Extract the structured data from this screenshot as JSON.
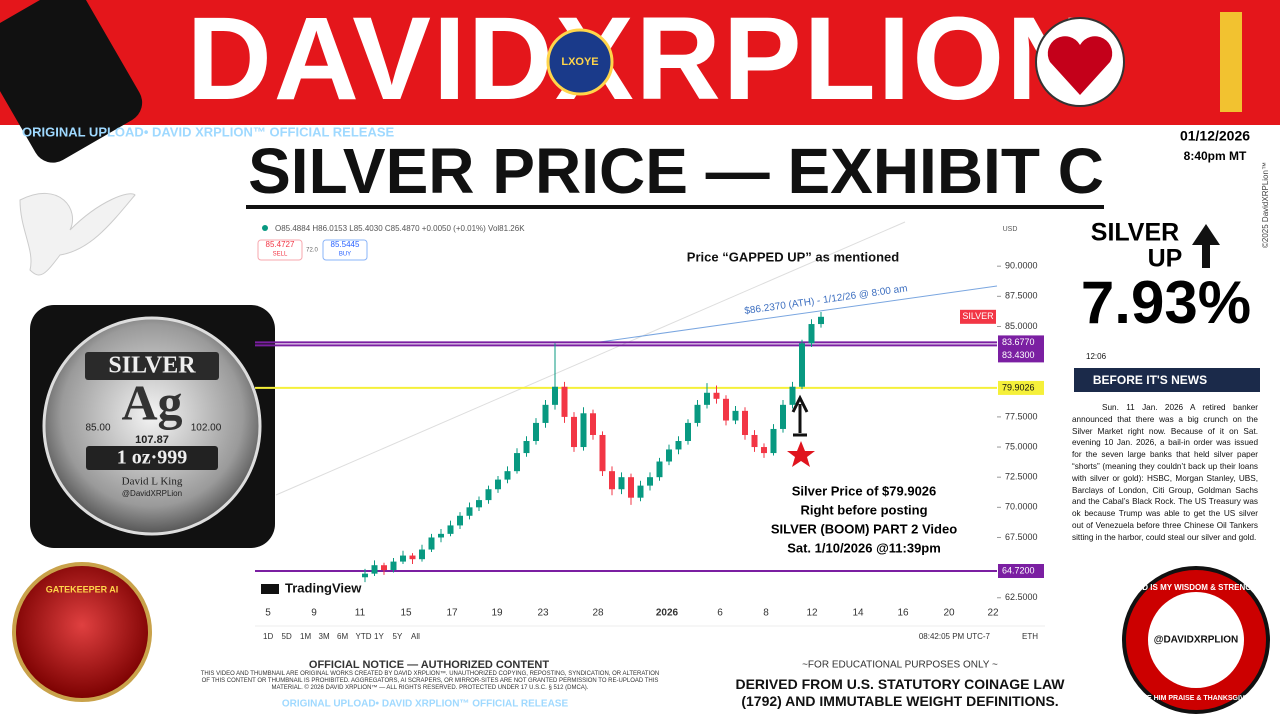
{
  "banner": {
    "title": "DAVIDXRPLION",
    "subline": "ORIGINAL UPLOAD• DAVID XRPLION™ OFFICIAL RELEASE",
    "badge": "LXOYE"
  },
  "header": {
    "title": "SILVER PRICE — EXHIBIT C",
    "date": "01/12/2026",
    "time": "8:40pm MT",
    "copyright": "©2025 DavidXRPLion™"
  },
  "coin": {
    "label": "SILVER",
    "symbol": "Ag",
    "left": "85.00",
    "right": "102.00",
    "number": "107.87",
    "weight": "1 oz·999",
    "name": "David L King",
    "handle": "@DavidXRPLion"
  },
  "chart_data": {
    "type": "candlestick",
    "ohlc_text": "O85.4884 H86.0153 L85.4030 C85.4870 +0.0050 (+0.01%) Vol81.26K",
    "sell": "85.4727",
    "sell_label": "SELL",
    "spread": "72.0",
    "buy": "85.5445",
    "buy_label": "BUY",
    "currency": "USD",
    "ylim": [
      61.9,
      93
    ],
    "yticks": [
      {
        "value": 90,
        "label": "90.0000"
      },
      {
        "value": 87.5,
        "label": "87.5000"
      },
      {
        "value": 85,
        "label": "85.0000"
      },
      {
        "value": 77.5,
        "label": "77.5000"
      },
      {
        "value": 75,
        "label": "75.0000"
      },
      {
        "value": 72.5,
        "label": "72.5000"
      },
      {
        "value": 70,
        "label": "70.0000"
      },
      {
        "value": 67.5,
        "label": "67.5000"
      },
      {
        "value": 62.5,
        "label": "62.5000"
      }
    ],
    "categories": [
      "5",
      "9",
      "11",
      "15",
      "17",
      "19",
      "23",
      "28",
      "2026",
      "6",
      "8",
      "12",
      "14",
      "16",
      "20",
      "22"
    ],
    "candles": [
      [
        64.2,
        64.9,
        63.8,
        64.5
      ],
      [
        64.5,
        65.6,
        64.3,
        65.2
      ],
      [
        65.2,
        65.4,
        64.4,
        64.8
      ],
      [
        64.8,
        65.8,
        64.6,
        65.5
      ],
      [
        65.5,
        66.4,
        65.3,
        66.0
      ],
      [
        66.0,
        66.2,
        65.3,
        65.7
      ],
      [
        65.7,
        66.9,
        65.5,
        66.5
      ],
      [
        66.5,
        67.8,
        66.3,
        67.5
      ],
      [
        67.5,
        68.2,
        67.1,
        67.8
      ],
      [
        67.8,
        68.9,
        67.6,
        68.5
      ],
      [
        68.5,
        69.6,
        68.2,
        69.3
      ],
      [
        69.3,
        70.4,
        69.0,
        70.0
      ],
      [
        70.0,
        70.9,
        69.7,
        70.6
      ],
      [
        70.6,
        71.8,
        70.3,
        71.5
      ],
      [
        71.5,
        72.6,
        71.2,
        72.3
      ],
      [
        72.3,
        73.4,
        72.0,
        73.0
      ],
      [
        73.0,
        74.9,
        72.8,
        74.5
      ],
      [
        74.5,
        75.9,
        74.2,
        75.5
      ],
      [
        75.5,
        77.4,
        75.2,
        77.0
      ],
      [
        77.0,
        78.9,
        76.6,
        78.5
      ],
      [
        78.5,
        83.6,
        78.1,
        80.0
      ],
      [
        80.0,
        80.4,
        77.0,
        77.5
      ],
      [
        77.5,
        77.9,
        74.6,
        75.0
      ],
      [
        75.0,
        78.3,
        74.7,
        77.8
      ],
      [
        77.8,
        78.1,
        75.6,
        76.0
      ],
      [
        76.0,
        76.3,
        72.6,
        73.0
      ],
      [
        73.0,
        73.4,
        71.0,
        71.5
      ],
      [
        71.5,
        72.9,
        71.1,
        72.5
      ],
      [
        72.5,
        72.8,
        70.2,
        70.8
      ],
      [
        70.8,
        72.2,
        70.5,
        71.8
      ],
      [
        71.8,
        72.9,
        71.4,
        72.5
      ],
      [
        72.5,
        74.1,
        72.2,
        73.8
      ],
      [
        73.8,
        75.2,
        73.5,
        74.8
      ],
      [
        74.8,
        75.9,
        74.4,
        75.5
      ],
      [
        75.5,
        77.3,
        75.2,
        77.0
      ],
      [
        77.0,
        78.9,
        76.7,
        78.5
      ],
      [
        78.5,
        80.3,
        78.2,
        79.5
      ],
      [
        79.5,
        80.1,
        78.6,
        79.0
      ],
      [
        79.0,
        79.3,
        76.8,
        77.2
      ],
      [
        77.2,
        78.4,
        76.9,
        78.0
      ],
      [
        78.0,
        78.3,
        75.6,
        76.0
      ],
      [
        76.0,
        76.4,
        74.6,
        75.0
      ],
      [
        75.0,
        75.3,
        74.1,
        74.5
      ],
      [
        74.5,
        76.9,
        74.3,
        76.5
      ],
      [
        76.5,
        78.9,
        76.2,
        78.5
      ],
      [
        78.5,
        80.4,
        78.2,
        80.0
      ],
      [
        80.0,
        83.9,
        79.8,
        83.6
      ],
      [
        83.6,
        85.6,
        83.3,
        85.2
      ],
      [
        85.2,
        86.2,
        84.9,
        85.8
      ]
    ],
    "up_color": "#089981",
    "down_color": "#f23645",
    "levels": [
      {
        "value": 83.677,
        "label": "83.6770",
        "color": "#7b1fa2"
      },
      {
        "value": 83.43,
        "label": "83.4300",
        "color": "#7b1fa2"
      },
      {
        "value": 79.9026,
        "label": "79.9026",
        "color": "#f5f03a"
      },
      {
        "value": 64.72,
        "label": "64.7200",
        "color": "#7b1fa2"
      }
    ],
    "symbol_tag": "SILVER",
    "ath_note": "$86.2370 (ATH) - 1/12/26 @ 8:00 am",
    "gap_note": "Price “GAPPED UP” as mentioned",
    "post_note": [
      "Silver Price of $79.9026",
      "Right before posting",
      "SILVER (BOOM) PART 2 Video",
      "Sat. 1/10/2026 @11:39pm"
    ],
    "brand": "TradingView",
    "timeframes": [
      "1D",
      "5D",
      "1M",
      "3M",
      "6M",
      "YTD",
      "1Y",
      "5Y",
      "All"
    ],
    "clock": "08:42:05 PM UTC-7",
    "session": "ETH"
  },
  "side": {
    "headline1": "SILVER",
    "headline2": "UP",
    "change": "7.93%",
    "phone_time": "12:06",
    "news_brand": "BEFORE IT'S NEWS",
    "article": "Sun. 11 Jan. 2026 A retired banker announced that there was a big crunch on the Silver Market right now. Because of it on Sat. evening 10 Jan. 2026, a bail-in order was issued for the seven large banks that held silver paper “shorts” (meaning they couldn’t back up their loans with silver or gold): HSBC, Morgan Stanley, UBS, Barclays of London, Citi Group, Goldman Sachs and the Cabal’s Black Rock. The US Treasury was ok because Trump was able to get the US silver out of Venezuela before three Chinese Oil Tankers sitting in the harbor, could steal our silver and gold."
  },
  "footer": {
    "notice": "OFFICIAL NOTICE — AUTHORIZED CONTENT",
    "fine_print": "THIS VIDEO AND THUMBNAIL ARE ORIGINAL WORKS CREATED BY DAVID XRPLION™. UNAUTHORIZED COPYING, REPOSTING, SYNDICATION, OR ALTERATION OF THIS CONTENT OR THUMBNAIL IS PROHIBITED. AGGREGATORS, AI SCRAPERS, OR MIRROR-SITES ARE NOT GRANTED PERMISSION TO RE-UPLOAD THIS MATERIAL. © 2026 DAVID XRPLION™ — ALL RIGHTS RESERVED. PROTECTED UNDER 17 U.S.C. § 512 (DMCA).",
    "release": "ORIGINAL UPLOAD• DAVID XRPLION™ OFFICIAL RELEASE",
    "edu": "~FOR EDUCATIONAL PURPOSES ONLY ~",
    "law": "DERIVED FROM U.S. STATUTORY COINAGE LAW (1792) AND IMMUTABLE WEIGHT DEFINITIONS.",
    "left_badge": "GATEKEEPER AI",
    "right_badge_top": "GOD IS MY WISDOM & STRENGTH",
    "right_badge_handle": "@DAVIDXRPLION",
    "right_badge_bottom": "GIVE HIM PRAISE & THANKSGIVING"
  }
}
